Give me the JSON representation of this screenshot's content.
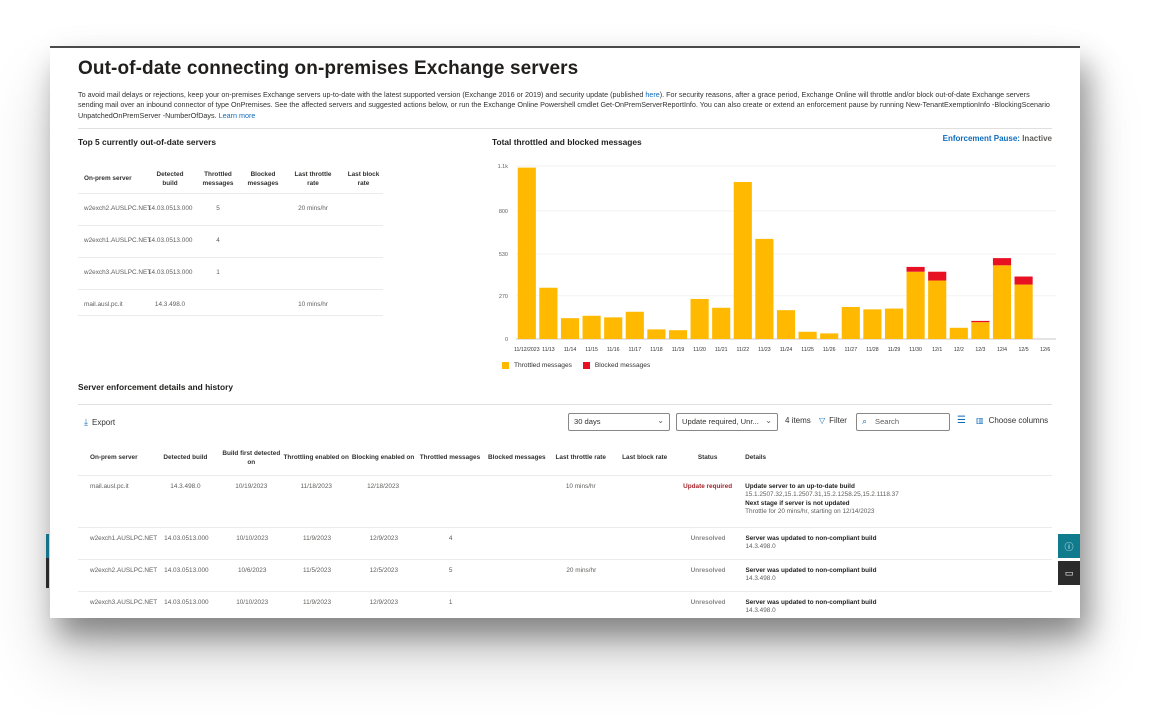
{
  "page": {
    "title": "Out-of-date connecting on-premises Exchange servers",
    "description_parts": [
      "To avoid mail delays or rejections, keep your on-premises Exchange servers up-to-date with the latest supported version (Exchange 2016 or 2019) and security update (published ",
      "here",
      "). For security reasons, after a grace period, Exchange Online will throttle and/or block out-of-date Exchange servers sending mail over an inbound connector of type OnPremises. See the affected servers and suggested actions below, or run the Exchange Online Powershell cmdlet Get-OnPremServerReportInfo. You can also create or extend an enforcement pause by running New-TenantExemptionInfo -BlockingScenario UnpatchedOnPremServer -NumberOfDays. ",
      "Learn more"
    ]
  },
  "top5": {
    "title": "Top 5 currently out-of-date servers",
    "headers": [
      "On-prem server",
      "Detected build",
      "Throttled messages",
      "Blocked messages",
      "Last throttle rate",
      "Last block rate"
    ],
    "rows": [
      [
        "w2exch2.AUSLPC.NET",
        "14.03.0513.000",
        "5",
        "",
        "20 mins/hr",
        ""
      ],
      [
        "w2exch1.AUSLPC.NET",
        "14.03.0513.000",
        "4",
        "",
        "",
        ""
      ],
      [
        "w2exch3.AUSLPC.NET",
        "14.03.0513.000",
        "1",
        "",
        "",
        ""
      ],
      [
        "mail.ausl.pc.it",
        "14.3.498.0",
        "",
        "",
        "10 mins/hr",
        ""
      ]
    ]
  },
  "enforcement": {
    "key": "Enforcement Pause:",
    "value": "Inactive"
  },
  "chart_data": {
    "type": "bar",
    "title": "Total throttled and blocked messages",
    "categories": [
      "11/12/2023",
      "11/13",
      "11/14",
      "11/15",
      "11/16",
      "11/17",
      "11/18",
      "11/19",
      "11/20",
      "11/21",
      "11/22",
      "11/23",
      "11/24",
      "11/25",
      "11/26",
      "11/27",
      "11/28",
      "11/29",
      "11/30",
      "12/1",
      "12/2",
      "12/3",
      "12/4",
      "12/5",
      "12/6"
    ],
    "yticks": [
      "0",
      "270",
      "530",
      "800",
      "1.1k"
    ],
    "ylim": [
      0,
      1080
    ],
    "stacked": true,
    "series": [
      {
        "name": "Throttled messages",
        "color": "#ffb900",
        "values": [
          1070,
          320,
          130,
          145,
          135,
          170,
          60,
          55,
          250,
          195,
          980,
          625,
          180,
          45,
          35,
          200,
          185,
          190,
          420,
          365,
          70,
          105,
          460,
          340,
          0
        ]
      },
      {
        "name": "Blocked messages",
        "color": "#e81123",
        "values": [
          0,
          0,
          0,
          0,
          0,
          0,
          0,
          0,
          0,
          0,
          0,
          0,
          0,
          0,
          0,
          0,
          0,
          0,
          30,
          55,
          0,
          8,
          45,
          50,
          0
        ]
      }
    ]
  },
  "history": {
    "title": "Server enforcement details and history",
    "export_label": "Export",
    "range_value": "30 days",
    "status_filter_value": "Update required, Unr...",
    "items_count": "4 items",
    "filter_label": "Filter",
    "search_placeholder": "Search",
    "choose_columns_label": "Choose columns",
    "headers": [
      "On-prem server",
      "Detected build",
      "Build first detected on",
      "Throttling enabled on",
      "Blocking enabled on",
      "Throttled messages",
      "Blocked messages",
      "Last throttle rate",
      "Last block rate",
      "Status",
      "Details"
    ],
    "rows": [
      {
        "cells": [
          "mail.ausl.pc.it",
          "14.3.498.0",
          "10/19/2023",
          "11/18/2023",
          "12/18/2023",
          "",
          "",
          "10 mins/hr",
          ""
        ],
        "status": "Update required",
        "details_title": "Update server to an up-to-date build",
        "details_lines": [
          "15.1.2507.32,15.1.2507.31,15.2.1258.25,15.2.1118.37"
        ],
        "details_title2": "Next stage if server is not updated",
        "details_lines2": [
          "Throttle for 20 mins/hr, starting on 12/14/2023"
        ]
      },
      {
        "cells": [
          "w2exch1.AUSLPC.NET",
          "14.03.0513.000",
          "10/10/2023",
          "11/9/2023",
          "12/9/2023",
          "4",
          "",
          "",
          ""
        ],
        "status": "Unresolved",
        "details_title": "Server was updated to non-compliant build",
        "details_lines": [
          "14.3.498.0"
        ]
      },
      {
        "cells": [
          "w2exch2.AUSLPC.NET",
          "14.03.0513.000",
          "10/6/2023",
          "11/5/2023",
          "12/5/2023",
          "5",
          "",
          "20 mins/hr",
          ""
        ],
        "status": "Unresolved",
        "details_title": "Server was updated to non-compliant build",
        "details_lines": [
          "14.3.498.0"
        ]
      },
      {
        "cells": [
          "w2exch3.AUSLPC.NET",
          "14.03.0513.000",
          "10/10/2023",
          "11/9/2023",
          "12/9/2023",
          "1",
          "",
          "",
          ""
        ],
        "status": "Unresolved",
        "details_title": "Server was updated to non-compliant build",
        "details_lines": [
          "14.3.498.0"
        ]
      }
    ]
  },
  "side_buttons": [
    {
      "icon": "feedback-icon",
      "color": "#0f7b8c"
    },
    {
      "icon": "chat-icon",
      "color": "#2b2b2b"
    }
  ]
}
